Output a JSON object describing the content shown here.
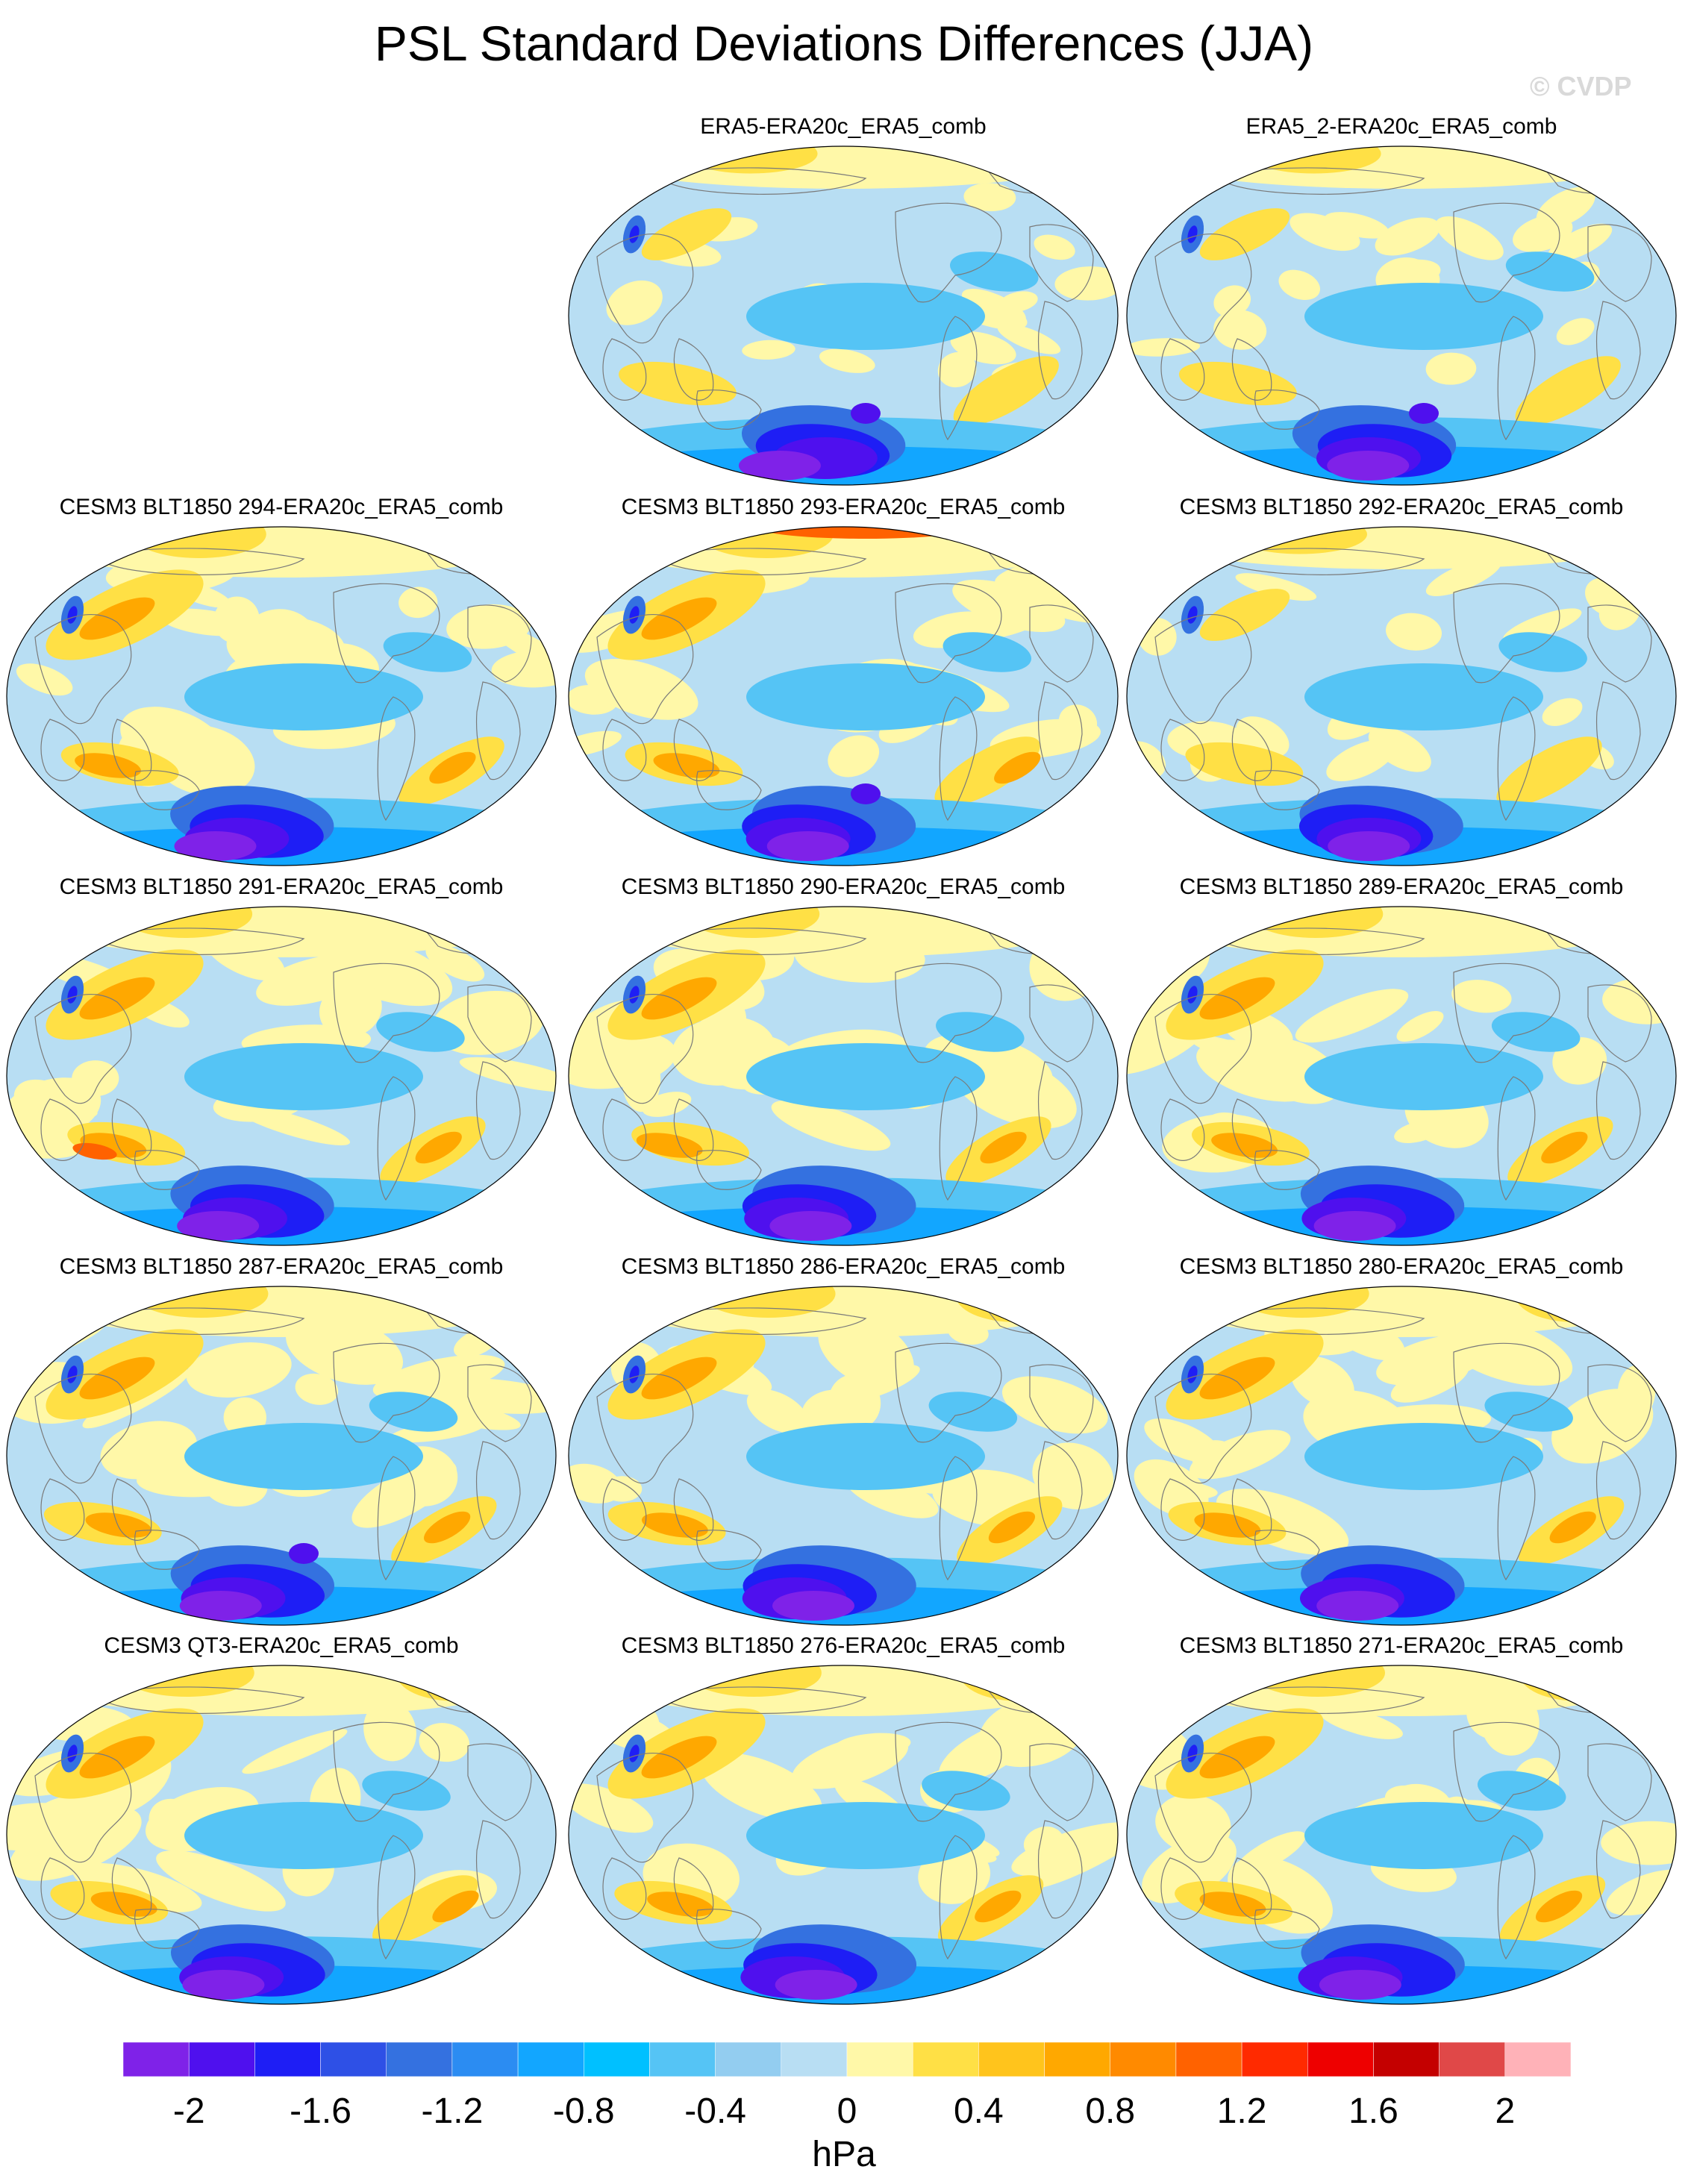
{
  "title": "PSL Standard Deviations Differences (JJA)",
  "watermark": "© CVDP",
  "panels": [
    {
      "label": "ERA5-ERA20c_ERA5_comb",
      "variant": 0
    },
    {
      "label": "ERA5_2-ERA20c_ERA5_comb",
      "variant": 1
    },
    {
      "label": "CESM3 BLT1850 294-ERA20c_ERA5_comb",
      "variant": 2
    },
    {
      "label": "CESM3 BLT1850 293-ERA20c_ERA5_comb",
      "variant": 3
    },
    {
      "label": "CESM3 BLT1850 292-ERA20c_ERA5_comb",
      "variant": 4
    },
    {
      "label": "CESM3 BLT1850 291-ERA20c_ERA5_comb",
      "variant": 5
    },
    {
      "label": "CESM3 BLT1850 290-ERA20c_ERA5_comb",
      "variant": 6
    },
    {
      "label": "CESM3 BLT1850 289-ERA20c_ERA5_comb",
      "variant": 7
    },
    {
      "label": "CESM3 BLT1850 287-ERA20c_ERA5_comb",
      "variant": 8
    },
    {
      "label": "CESM3 BLT1850 286-ERA20c_ERA5_comb",
      "variant": 9
    },
    {
      "label": "CESM3 BLT1850 280-ERA20c_ERA5_comb",
      "variant": 10
    },
    {
      "label": "CESM3 QT3-ERA20c_ERA5_comb",
      "variant": 11
    },
    {
      "label": "CESM3 BLT1850 276-ERA20c_ERA5_comb",
      "variant": 12
    },
    {
      "label": "CESM3 BLT1850 271-ERA20c_ERA5_comb",
      "variant": 13
    }
  ],
  "colorbar": {
    "colors": [
      "#7f22e8",
      "#4f10ee",
      "#1e1ef5",
      "#2e50e6",
      "#3471e0",
      "#2b8cf2",
      "#12a6ff",
      "#00c0ff",
      "#55c4f5",
      "#93cdf0",
      "#b8def3",
      "#fff8a8",
      "#ffe045",
      "#ffc41c",
      "#ffa800",
      "#ff8a00",
      "#ff6200",
      "#ff2a00",
      "#ee0000",
      "#c40000",
      "#e04848",
      "#ffb2b8"
    ],
    "tick_labels": [
      "-2",
      "-1.6",
      "-1.2",
      "-0.8",
      "-0.4",
      "0",
      "0.4",
      "0.8",
      "1.2",
      "1.6",
      "2"
    ],
    "units": "hPa"
  }
}
